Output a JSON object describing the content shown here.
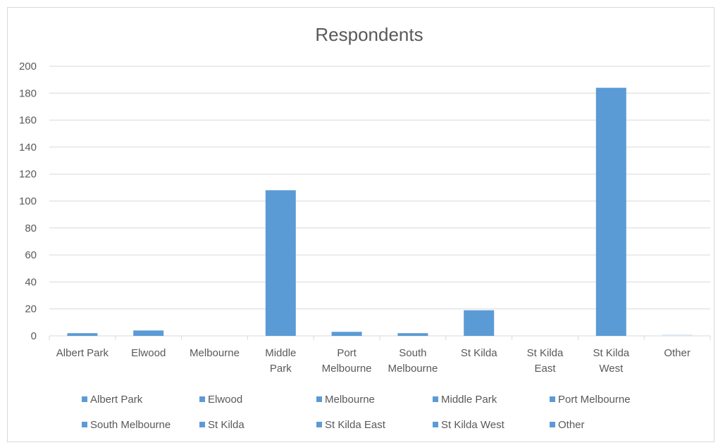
{
  "chart_data": {
    "type": "bar",
    "title": "Respondents",
    "categories": [
      "Albert Park",
      "Elwood",
      "Melbourne",
      "Middle Park",
      "Port Melbourne",
      "South Melbourne",
      "St Kilda",
      "St Kilda East",
      "St Kilda West",
      "Other"
    ],
    "category_label_lines": [
      [
        "Albert Park"
      ],
      [
        "Elwood"
      ],
      [
        "Melbourne"
      ],
      [
        "Middle",
        "Park"
      ],
      [
        "Port",
        "Melbourne"
      ],
      [
        "South",
        "Melbourne"
      ],
      [
        "St Kilda"
      ],
      [
        "St Kilda",
        "East"
      ],
      [
        "St Kilda",
        "West"
      ],
      [
        "Other"
      ]
    ],
    "values": [
      2,
      4,
      0,
      108,
      3,
      2,
      19,
      0,
      184,
      1
    ],
    "colors": [
      "#5b9bd5",
      "#5b9bd5",
      "#5b9bd5",
      "#5b9bd5",
      "#5b9bd5",
      "#5b9bd5",
      "#5b9bd5",
      "#5b9bd5",
      "#5b9bd5",
      "#dae8f5"
    ],
    "ylim": [
      0,
      200
    ],
    "yticks": [
      0,
      20,
      40,
      60,
      80,
      100,
      120,
      140,
      160,
      180,
      200
    ],
    "grid": true,
    "legend_position": "bottom",
    "legend": [
      "Albert Park",
      "Elwood",
      "Melbourne",
      "Middle Park",
      "Port Melbourne",
      "South Melbourne",
      "St Kilda",
      "St Kilda East",
      "St Kilda West",
      "Other"
    ],
    "xlabel": "",
    "ylabel": ""
  }
}
